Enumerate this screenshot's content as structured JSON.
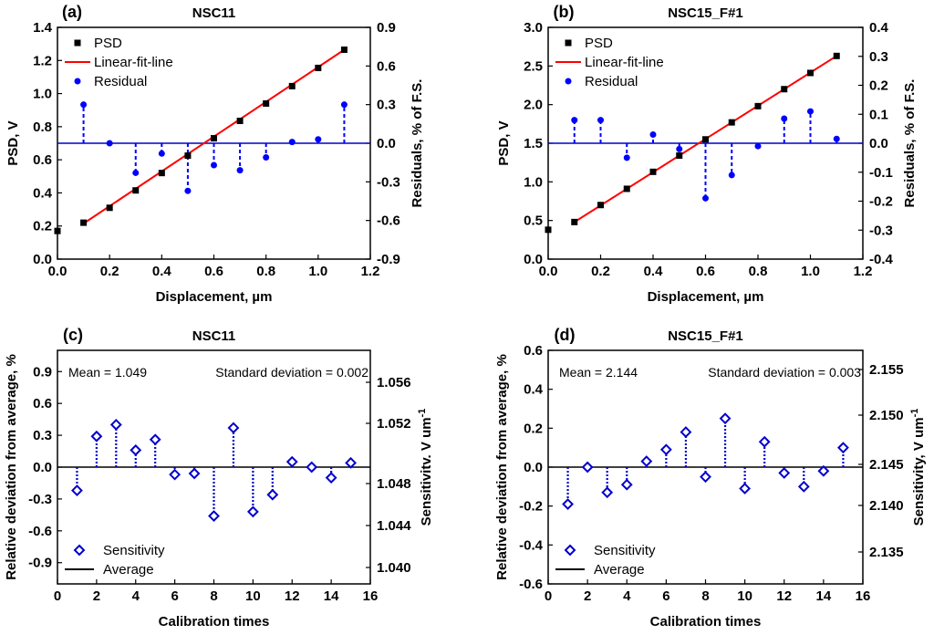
{
  "colors": {
    "psd": "#000000",
    "fit": "#ff0000",
    "residual": "#0000ff",
    "baseline": "#0000cc",
    "sens": "#0000cc",
    "avg": "#000000"
  },
  "chart_data": [
    {
      "type": "scatter",
      "panel": "(a)",
      "title": "NSC11",
      "xlabel": "Displacement, µm",
      "ylabel": "PSD, V",
      "y2label": "Residuals, % of F.S.",
      "xlim": [
        0,
        1.2
      ],
      "xticks": [
        "0.0",
        "0.2",
        "0.4",
        "0.6",
        "0.8",
        "1.0",
        "1.2"
      ],
      "ylim": [
        0,
        1.4
      ],
      "yticks": [
        "0.0",
        "0.2",
        "0.4",
        "0.6",
        "0.8",
        "1.0",
        "1.2",
        "1.4"
      ],
      "y2lim": [
        -0.9,
        0.9
      ],
      "y2ticks": [
        "-0.9",
        "-0.6",
        "-0.3",
        "0.0",
        "0.3",
        "0.6",
        "0.9"
      ],
      "psd": {
        "x": [
          0,
          0.1,
          0.2,
          0.3,
          0.4,
          0.5,
          0.6,
          0.7,
          0.8,
          0.9,
          1.0,
          1.1
        ],
        "y": [
          0.17,
          0.22,
          0.31,
          0.415,
          0.52,
          0.625,
          0.73,
          0.835,
          0.94,
          1.045,
          1.155,
          1.265
        ]
      },
      "fit": {
        "x": [
          0.1,
          1.1
        ],
        "y": [
          0.215,
          1.265
        ]
      },
      "residual": {
        "x": [
          0.1,
          0.2,
          0.3,
          0.4,
          0.5,
          0.6,
          0.7,
          0.8,
          0.9,
          1.0,
          1.1
        ],
        "y": [
          0.3,
          0.0,
          -0.23,
          -0.08,
          -0.37,
          -0.17,
          -0.21,
          -0.11,
          0.01,
          0.03,
          0.3
        ]
      },
      "legend": [
        "PSD",
        "Linear-fit-line",
        "Residual"
      ]
    },
    {
      "type": "scatter",
      "panel": "(b)",
      "title": "NSC15_F#1",
      "xlabel": "Displacement, µm",
      "ylabel": "PSD, V",
      "y2label": "Residuals, % of F.S.",
      "xlim": [
        0,
        1.2
      ],
      "xticks": [
        "0.0",
        "0.2",
        "0.4",
        "0.6",
        "0.8",
        "1.0",
        "1.2"
      ],
      "ylim": [
        0,
        3.0
      ],
      "yticks": [
        "0.0",
        "0.5",
        "1.0",
        "1.5",
        "2.0",
        "2.5",
        "3.0"
      ],
      "y2lim": [
        -0.4,
        0.4
      ],
      "y2ticks": [
        "-0.4",
        "-0.3",
        "-0.2",
        "-0.1",
        "0.0",
        "0.1",
        "0.2",
        "0.3",
        "0.4"
      ],
      "psd": {
        "x": [
          0,
          0.1,
          0.2,
          0.3,
          0.4,
          0.5,
          0.6,
          0.7,
          0.8,
          0.9,
          1.0,
          1.1
        ],
        "y": [
          0.38,
          0.48,
          0.7,
          0.91,
          1.13,
          1.34,
          1.55,
          1.77,
          1.98,
          2.2,
          2.41,
          2.63
        ]
      },
      "fit": {
        "x": [
          0.1,
          1.1
        ],
        "y": [
          0.48,
          2.63
        ]
      },
      "residual": {
        "x": [
          0.1,
          0.2,
          0.3,
          0.4,
          0.5,
          0.6,
          0.7,
          0.8,
          0.9,
          1.0,
          1.1
        ],
        "y": [
          0.08,
          0.08,
          -0.05,
          0.03,
          -0.02,
          -0.19,
          -0.11,
          -0.01,
          0.085,
          0.11,
          0.015
        ]
      },
      "legend": [
        "PSD",
        "Linear-fit-line",
        "Residual"
      ]
    },
    {
      "type": "scatter",
      "panel": "(c)",
      "title": "NSC11",
      "xlabel": "Calibration times",
      "ylabel": "Relative deviation from average, %",
      "y2label": "Sensitivitv. V um-1",
      "xlim": [
        0,
        16
      ],
      "xticks": [
        "0",
        "2",
        "4",
        "6",
        "8",
        "10",
        "12",
        "14",
        "16"
      ],
      "ylim": [
        -1.1,
        1.1
      ],
      "yticks": [
        "-0.9",
        "-0.6",
        "-0.3",
        "0.0",
        "0.3",
        "0.6",
        "0.9"
      ],
      "y2ticks": [
        "1.040",
        "1.044",
        "1.048",
        "1.052",
        "1.056"
      ],
      "annotations": {
        "mean": "Mean = 1.049",
        "std": "Standard deviation = 0.002"
      },
      "sensitivity": {
        "x": [
          1,
          2,
          3,
          4,
          5,
          6,
          7,
          8,
          9,
          10,
          11,
          12,
          13,
          14,
          15
        ],
        "y": [
          -0.22,
          0.29,
          0.4,
          0.16,
          0.26,
          -0.07,
          -0.06,
          -0.46,
          0.37,
          -0.42,
          -0.26,
          0.05,
          0.0,
          -0.1,
          0.04
        ]
      },
      "legend": [
        "Sensitivity",
        "Average"
      ]
    },
    {
      "type": "scatter",
      "panel": "(d)",
      "title": "NSC15_F#1",
      "xlabel": "Calibration times",
      "ylabel": "Relative deviation from average, %",
      "y2label": "Sensitivity, V um-1",
      "xlim": [
        0,
        16
      ],
      "xticks": [
        "0",
        "2",
        "4",
        "6",
        "8",
        "10",
        "12",
        "14",
        "16"
      ],
      "ylim": [
        -0.6,
        0.6
      ],
      "yticks": [
        "-0.6",
        "-0.4",
        "-0.2",
        "0.0",
        "0.2",
        "0.4",
        "0.6"
      ],
      "y2ticks": [
        "2.135",
        "2.140",
        "2.145",
        "2.150",
        "2.155"
      ],
      "annotations": {
        "mean": "Mean = 2.144",
        "std": "Standard deviation = 0.003"
      },
      "sensitivity": {
        "x": [
          1,
          2,
          3,
          4,
          5,
          6,
          7,
          8,
          9,
          10,
          11,
          12,
          13,
          14,
          15
        ],
        "y": [
          -0.19,
          0.0,
          -0.13,
          -0.09,
          0.03,
          0.09,
          0.18,
          -0.05,
          0.25,
          -0.11,
          0.13,
          -0.03,
          -0.1,
          -0.02,
          0.1
        ]
      },
      "legend": [
        "Sensitivity",
        "Average"
      ]
    }
  ]
}
